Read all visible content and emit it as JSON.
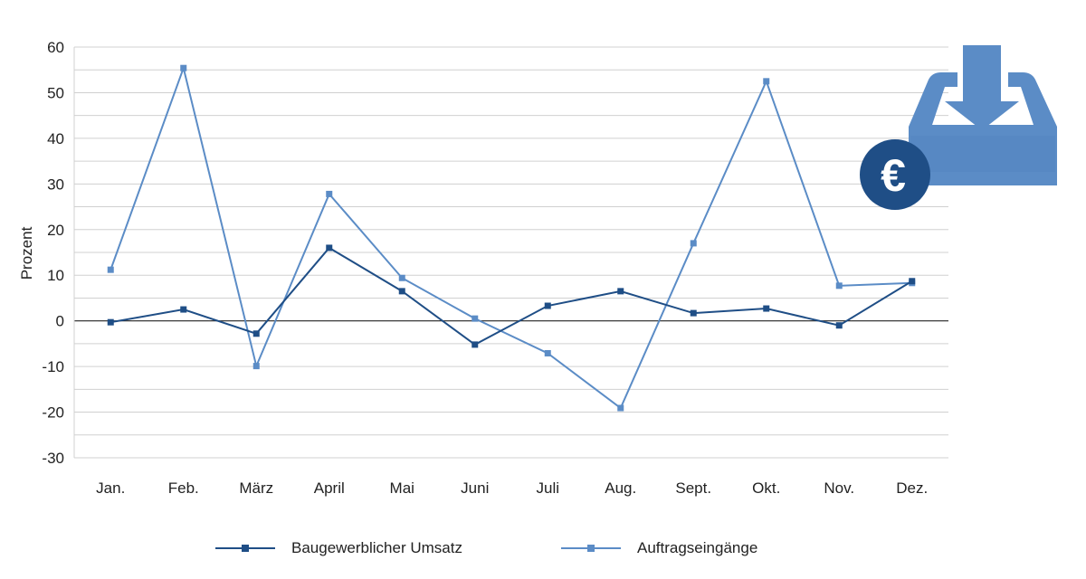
{
  "chart_data": {
    "type": "line",
    "categories": [
      "Jan.",
      "Feb.",
      "März",
      "April",
      "Mai",
      "Juni",
      "Juli",
      "Aug.",
      "Sept.",
      "Okt.",
      "Nov.",
      "Dez."
    ],
    "series": [
      {
        "name": "Baugewerblicher Umsatz",
        "color": "#1f4e86",
        "values": [
          -0.3,
          2.5,
          -2.8,
          16,
          6.5,
          -5.2,
          3.3,
          6.5,
          1.7,
          2.7,
          -1,
          8.7
        ]
      },
      {
        "name": "Auftragseingänge",
        "color": "#5b8cc6",
        "values": [
          11.2,
          55.4,
          -9.9,
          27.8,
          9.4,
          0.5,
          -7.1,
          -19.1,
          17,
          52.5,
          7.7,
          8.3
        ]
      }
    ],
    "ylabel": "Prozent",
    "xlabel": "",
    "ylim": [
      -30,
      60
    ],
    "yticks": [
      60,
      50,
      40,
      30,
      20,
      10,
      0,
      -10,
      -20,
      -30
    ],
    "grid": true,
    "legend_position": "bottom"
  },
  "icon": {
    "name": "inbox-euro-icon",
    "symbol": "€",
    "color": "#5b8cc6",
    "badge_color": "#1f4e86"
  }
}
